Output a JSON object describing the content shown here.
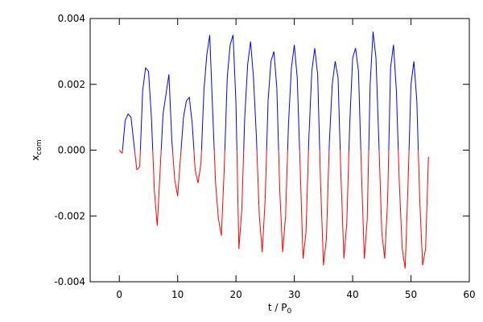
{
  "chart_data": {
    "type": "line",
    "xlabel": {
      "text": "t / P",
      "subscript": "0"
    },
    "ylabel": {
      "text": "x",
      "subscript": "com"
    },
    "xlim": [
      -5,
      60
    ],
    "ylim": [
      -0.004,
      0.004
    ],
    "xticks": [
      0,
      10,
      20,
      30,
      40,
      50,
      60
    ],
    "yticks": [
      {
        "value": -0.004,
        "label": "-0.004"
      },
      {
        "value": -0.002,
        "label": "-0.002"
      },
      {
        "value": 0,
        "label": "0.000"
      },
      {
        "value": 0.002,
        "label": "0.002"
      },
      {
        "value": 0.004,
        "label": "0.004"
      }
    ],
    "color_positive": "#0000ff",
    "color_negative": "#ff0000",
    "x": [
      0,
      0.5,
      1,
      1.5,
      2,
      2.5,
      3,
      3.5,
      4,
      4.5,
      5,
      5.5,
      6,
      6.5,
      7,
      7.5,
      8,
      8.5,
      9,
      9.5,
      10,
      10.5,
      11,
      11.5,
      12,
      12.5,
      13,
      13.5,
      14,
      14.5,
      15,
      15.5,
      16,
      16.5,
      17,
      17.5,
      18,
      18.5,
      19,
      19.5,
      20,
      20.5,
      21,
      21.5,
      22,
      22.5,
      23,
      23.5,
      24,
      24.5,
      25,
      25.5,
      26,
      26.5,
      27,
      27.5,
      28,
      28.5,
      29,
      29.5,
      30,
      30.5,
      31,
      31.5,
      32,
      32.5,
      33,
      33.5,
      34,
      34.5,
      35,
      35.5,
      36,
      36.5,
      37,
      37.5,
      38,
      38.5,
      39,
      39.5,
      40,
      40.5,
      41,
      41.5,
      42,
      42.5,
      43,
      43.5,
      44,
      44.5,
      45,
      45.5,
      46,
      46.5,
      47,
      47.5,
      48,
      48.5,
      49,
      49.5,
      50,
      50.5,
      51,
      51.5,
      52,
      52.5,
      53
    ],
    "values": [
      0,
      -0.0001,
      0.0009,
      0.0011,
      0.001,
      0.0002,
      -0.0006,
      -0.0005,
      0.0018,
      0.0025,
      0.0024,
      0.001,
      -0.0012,
      -0.0023,
      -0.0006,
      0.0011,
      0.0017,
      0.0023,
      0.0003,
      -0.0009,
      -0.0014,
      -0.0002,
      0.001,
      0.0015,
      0.0016,
      0.0008,
      -0.0006,
      -0.001,
      -0.0004,
      0.0018,
      0.0029,
      0.0035,
      0.0012,
      -0.001,
      -0.0021,
      -0.0026,
      -0.0005,
      0.0022,
      0.0032,
      0.0035,
      0.0014,
      -0.003,
      -0.0018,
      0.001,
      0.0026,
      0.0033,
      0.0022,
      0.0004,
      -0.002,
      -0.0031,
      -0.0015,
      0.0015,
      0.0027,
      0.003,
      0.0019,
      -0.0012,
      -0.0031,
      -0.002,
      0.0008,
      0.0025,
      0.0032,
      0.0022,
      -0.0005,
      -0.0033,
      -0.0025,
      0.0004,
      0.0024,
      0.0031,
      0.0023,
      -0.001,
      -0.0035,
      -0.0027,
      0.0002,
      0.002,
      0.0027,
      0.0022,
      -0.0008,
      -0.0033,
      -0.0022,
      0.0008,
      0.0028,
      0.0031,
      0.0024,
      -0.0006,
      -0.0033,
      -0.0021,
      0.002,
      0.0036,
      0.0028,
      0.0002,
      -0.0025,
      -0.0033,
      -0.0015,
      0.0025,
      0.0032,
      0.0018,
      -0.001,
      -0.003,
      -0.0036,
      -0.001,
      0.002,
      0.0027,
      0.0015,
      -0.0015,
      -0.0035,
      -0.003,
      -0.0002
    ]
  }
}
